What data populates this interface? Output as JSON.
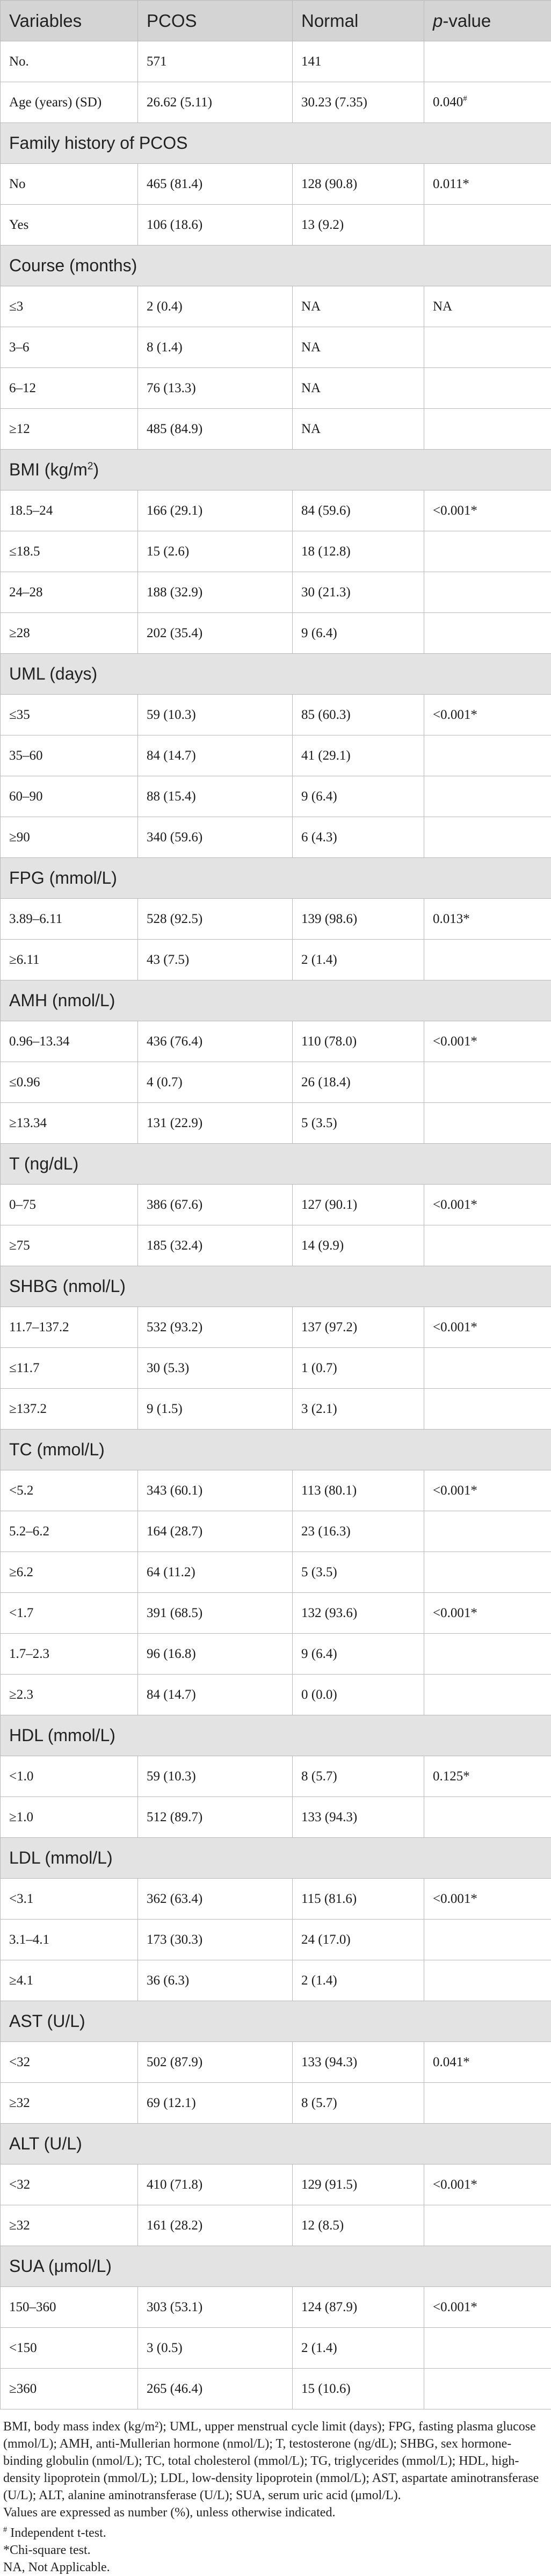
{
  "header": {
    "variables": "Variables",
    "pcos": "PCOS",
    "normal": "Normal",
    "pvalue_p": "p",
    "pvalue_rest": "-value"
  },
  "sections": [
    {
      "group": null,
      "rows": [
        {
          "label": "No.",
          "pcos": "571",
          "normal": "141",
          "p": ""
        },
        {
          "label": "Age (years) (SD)",
          "pcos": "26.62 (5.11)",
          "normal": "30.23 (7.35)",
          "p": "0.040",
          "p_sup": "#"
        }
      ]
    },
    {
      "group": "Family history of PCOS",
      "rows": [
        {
          "label": "No",
          "pcos": "465 (81.4)",
          "normal": "128 (90.8)",
          "p": "0.011*"
        },
        {
          "label": "Yes",
          "pcos": "106 (18.6)",
          "normal": "13 (9.2)",
          "p": ""
        }
      ]
    },
    {
      "group": "Course (months)",
      "rows": [
        {
          "label": "≤3",
          "pcos": "2 (0.4)",
          "normal": "NA",
          "p": "NA"
        },
        {
          "label": "3–6",
          "pcos": "8 (1.4)",
          "normal": "NA",
          "p": ""
        },
        {
          "label": "6–12",
          "pcos": "76 (13.3)",
          "normal": "NA",
          "p": ""
        },
        {
          "label": "≥12",
          "pcos": "485 (84.9)",
          "normal": "NA",
          "p": ""
        }
      ]
    },
    {
      "group": "BMI (kg/m",
      "group_sup": "2",
      "group_tail": ")",
      "rows": [
        {
          "label": "18.5–24",
          "pcos": "166 (29.1)",
          "normal": "84 (59.6)",
          "p": "<0.001*"
        },
        {
          "label": "≤18.5",
          "pcos": "15 (2.6)",
          "normal": "18 (12.8)",
          "p": ""
        },
        {
          "label": "24–28",
          "pcos": "188 (32.9)",
          "normal": "30 (21.3)",
          "p": ""
        },
        {
          "label": "≥28",
          "pcos": "202 (35.4)",
          "normal": "9 (6.4)",
          "p": ""
        }
      ]
    },
    {
      "group": "UML (days)",
      "rows": [
        {
          "label": "≤35",
          "pcos": "59 (10.3)",
          "normal": "85 (60.3)",
          "p": "<0.001*"
        },
        {
          "label": "35–60",
          "pcos": "84 (14.7)",
          "normal": "41 (29.1)",
          "p": ""
        },
        {
          "label": "60–90",
          "pcos": "88 (15.4)",
          "normal": "9 (6.4)",
          "p": ""
        },
        {
          "label": "≥90",
          "pcos": "340 (59.6)",
          "normal": "6 (4.3)",
          "p": ""
        }
      ]
    },
    {
      "group": "FPG (mmol/L)",
      "rows": [
        {
          "label": "3.89–6.11",
          "pcos": "528 (92.5)",
          "normal": "139 (98.6)",
          "p": "0.013*"
        },
        {
          "label": "≥6.11",
          "pcos": "43 (7.5)",
          "normal": "2 (1.4)",
          "p": ""
        }
      ]
    },
    {
      "group": "AMH (nmol/L)",
      "rows": [
        {
          "label": "0.96–13.34",
          "pcos": "436 (76.4)",
          "normal": "110 (78.0)",
          "p": "<0.001*"
        },
        {
          "label": "≤0.96",
          "pcos": "4 (0.7)",
          "normal": "26 (18.4)",
          "p": ""
        },
        {
          "label": "≥13.34",
          "pcos": "131 (22.9)",
          "normal": "5 (3.5)",
          "p": ""
        }
      ]
    },
    {
      "group": "T (ng/dL)",
      "rows": [
        {
          "label": "0–75",
          "pcos": "386 (67.6)",
          "normal": "127 (90.1)",
          "p": "<0.001*"
        },
        {
          "label": "≥75",
          "pcos": "185 (32.4)",
          "normal": "14 (9.9)",
          "p": ""
        }
      ]
    },
    {
      "group": "SHBG (nmol/L)",
      "rows": [
        {
          "label": "11.7–137.2",
          "pcos": "532 (93.2)",
          "normal": "137 (97.2)",
          "p": "<0.001*"
        },
        {
          "label": "≤11.7",
          "pcos": "30 (5.3)",
          "normal": "1 (0.7)",
          "p": ""
        },
        {
          "label": "≥137.2",
          "pcos": "9 (1.5)",
          "normal": "3 (2.1)",
          "p": ""
        }
      ]
    },
    {
      "group": "TC (mmol/L)",
      "rows": [
        {
          "label": "<5.2",
          "pcos": "343 (60.1)",
          "normal": "113 (80.1)",
          "p": "<0.001*"
        },
        {
          "label": "5.2–6.2",
          "pcos": "164 (28.7)",
          "normal": "23 (16.3)",
          "p": ""
        },
        {
          "label": "≥6.2",
          "pcos": "64 (11.2)",
          "normal": "5 (3.5)",
          "p": ""
        },
        {
          "label": "<1.7",
          "pcos": "391 (68.5)",
          "normal": "132 (93.6)",
          "p": "<0.001*"
        },
        {
          "label": "1.7–2.3",
          "pcos": "96 (16.8)",
          "normal": "9 (6.4)",
          "p": ""
        },
        {
          "label": "≥2.3",
          "pcos": "84 (14.7)",
          "normal": "0 (0.0)",
          "p": ""
        }
      ]
    },
    {
      "group": "HDL (mmol/L)",
      "rows": [
        {
          "label": "<1.0",
          "pcos": "59 (10.3)",
          "normal": "8 (5.7)",
          "p": "0.125*"
        },
        {
          "label": "≥1.0",
          "pcos": "512 (89.7)",
          "normal": "133 (94.3)",
          "p": ""
        }
      ]
    },
    {
      "group": "LDL (mmol/L)",
      "rows": [
        {
          "label": "<3.1",
          "pcos": "362 (63.4)",
          "normal": "115 (81.6)",
          "p": "<0.001*"
        },
        {
          "label": "3.1–4.1",
          "pcos": "173 (30.3)",
          "normal": "24 (17.0)",
          "p": ""
        },
        {
          "label": "≥4.1",
          "pcos": "36 (6.3)",
          "normal": "2 (1.4)",
          "p": ""
        }
      ]
    },
    {
      "group": "AST (U/L)",
      "rows": [
        {
          "label": "<32",
          "pcos": "502 (87.9)",
          "normal": "133 (94.3)",
          "p": "0.041*"
        },
        {
          "label": "≥32",
          "pcos": "69 (12.1)",
          "normal": "8 (5.7)",
          "p": ""
        }
      ]
    },
    {
      "group": "ALT (U/L)",
      "rows": [
        {
          "label": "<32",
          "pcos": "410 (71.8)",
          "normal": "129 (91.5)",
          "p": "<0.001*"
        },
        {
          "label": "≥32",
          "pcos": "161 (28.2)",
          "normal": "12 (8.5)",
          "p": ""
        }
      ]
    },
    {
      "group": "SUA (μmol/L)",
      "rows": [
        {
          "label": "150–360",
          "pcos": "303 (53.1)",
          "normal": "124 (87.9)",
          "p": "<0.001*"
        },
        {
          "label": "<150",
          "pcos": "3 (0.5)",
          "normal": "2 (1.4)",
          "p": ""
        },
        {
          "label": "≥360",
          "pcos": "265 (46.4)",
          "normal": "15 (10.6)",
          "p": ""
        }
      ]
    }
  ],
  "footnotes": {
    "abbreviations": "BMI, body mass index (kg/m²); UML, upper menstrual cycle limit (days); FPG, fasting plasma glucose (mmol/L); AMH, anti-Mullerian hormone (nmol/L); T, testosterone (ng/dL); SHBG, sex hormone-binding globulin (nmol/L); TC, total cholesterol (mmol/L); TG, triglycerides (mmol/L); HDL, high-density lipoprotein (mmol/L); LDL, low-density lipoprotein (mmol/L); AST, aspartate aminotransferase (U/L); ALT, alanine aminotransferase (U/L); SUA, serum uric acid (μmol/L).",
    "values_note": "Values are expressed as number (%), unless otherwise indicated.",
    "hash_mark": "#",
    "hash_note": " Independent t-test.",
    "star_note": "*Chi-square test.",
    "na_note": "NA, Not Applicable."
  }
}
